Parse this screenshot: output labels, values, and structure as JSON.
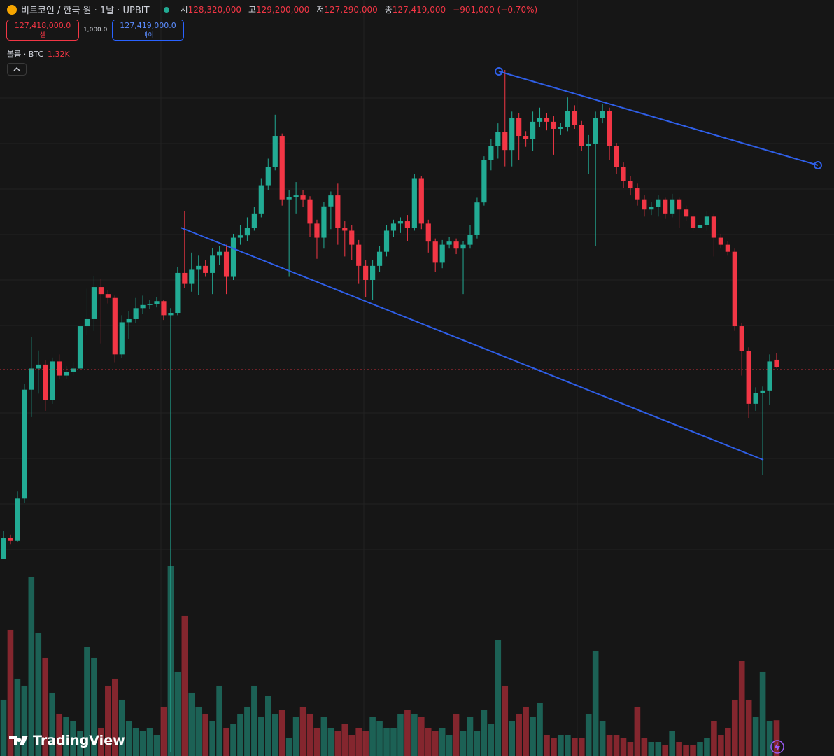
{
  "header": {
    "symbol": "비트코인 / 한국 원 · 1날 · UPBIT",
    "ohlc": [
      {
        "label": "시",
        "value": "128,320,000"
      },
      {
        "label": "고",
        "value": "129,200,000"
      },
      {
        "label": "저",
        "value": "127,290,000"
      },
      {
        "label": "종",
        "value": "127,419,000"
      }
    ],
    "change": "−901,000 (−0.70%)"
  },
  "trade": {
    "sell_price": "127,418,000.0",
    "sell": "셀",
    "spread": "1,000.0",
    "buy_price": "127,419,000.0",
    "buy": "바이"
  },
  "volume_legend": {
    "title": "볼륨 · BTC",
    "value": "1.32K"
  },
  "branding": "TradingView",
  "chart_data": {
    "type": "candlestick",
    "up_color": "#22ab94",
    "down_color": "#f23645",
    "open": [
      102900000.0,
      105600000.0,
      105200000.0,
      110600000.0,
      124500000.0,
      127200000.0,
      127700000.0,
      123200000.0,
      128100000.0,
      126300000.0,
      126800000.0,
      127200000.0,
      132600000.0,
      133500000.0,
      137600000.0,
      136700000.0,
      136200000.0,
      129000000.0,
      133100000.0,
      133500000.0,
      134900000.0,
      135300000.0,
      135400000.0,
      135800000.0,
      134000000.0,
      134300000.0,
      139400000.0,
      138000000.0,
      139800000.0,
      140300000.0,
      139400000.0,
      141600000.0,
      142100000.0,
      138900000.0,
      143900000.0,
      144200000.0,
      145200000.0,
      147000000.0,
      150600000.0,
      152900000.0,
      156900000.0,
      148800000.0,
      149100000.0,
      149300000.0,
      148800000.0,
      145700000.0,
      143900000.0,
      147900000.0,
      149300000.0,
      145200000.0,
      144800000.0,
      143000000.0,
      140300000.0,
      138500000.0,
      140300000.0,
      142100000.0,
      144800000.0,
      145700000.0,
      146000000.0,
      145200000.0,
      151500000.0,
      145700000.0,
      143400000.0,
      140700000.0,
      143000000.0,
      143400000.0,
      142500000.0,
      143000000.0,
      144300000.0,
      148400000.0,
      153800000.0,
      155600000.0,
      157400000.0,
      155100000.0,
      159200000.0,
      156900000.0,
      156500000.0,
      158700000.0,
      159200000.0,
      158700000.0,
      157800000.0,
      158000000.0,
      160100000.0,
      158300000.0,
      155600000.0,
      155900000.0,
      159200000.0,
      160100000.0,
      155600000.0,
      152900000.0,
      151100000.0,
      150200000.0,
      148800000.0,
      147500000.0,
      147800000.0,
      148800000.0,
      147000000.0,
      148800000.0,
      147500000.0,
      146600000.0,
      145200000.0,
      145500000.0,
      146600000.0,
      143900000.0,
      143000000.0,
      142100000.0,
      132600000.0,
      129400000.0,
      122700000.0,
      124100000.0,
      124400000.0,
      128320000.0
    ],
    "high": [
      106500000.0,
      106000000.0,
      111500000.0,
      125200000.0,
      131200000.0,
      129500000.0,
      128300000.0,
      128600000.0,
      129000000.0,
      127500000.0,
      128000000.0,
      133000000.0,
      137400000.0,
      139000000.0,
      138600000.0,
      137200000.0,
      136500000.0,
      134000000.0,
      134500000.0,
      136200000.0,
      136500000.0,
      136000000.0,
      136300000.0,
      136000000.0,
      134900000.0,
      140200000.0,
      147300000.0,
      142000000.0,
      141600000.0,
      141000000.0,
      142600000.0,
      142800000.0,
      143000000.0,
      144400000.0,
      145500000.0,
      146500000.0,
      147800000.0,
      151500000.0,
      154000000.0,
      159600000.0,
      157200000.0,
      150000000.0,
      151000000.0,
      150000000.0,
      149200000.0,
      146200000.0,
      148500000.0,
      149800000.0,
      150800000.0,
      146000000.0,
      145500000.0,
      143600000.0,
      141000000.0,
      141000000.0,
      142800000.0,
      145500000.0,
      146200000.0,
      146500000.0,
      146800000.0,
      152000000.0,
      151800000.0,
      146200000.0,
      143800000.0,
      143600000.0,
      144000000.0,
      143800000.0,
      143500000.0,
      145500000.0,
      149000000.0,
      154300000.0,
      156500000.0,
      158500000.0,
      165300000.0,
      160000000.0,
      159800000.0,
      157500000.0,
      160000000.0,
      160500000.0,
      159800000.0,
      159400000.0,
      158600000.0,
      161800000.0,
      160800000.0,
      158800000.0,
      157000000.0,
      160000000.0,
      161000000.0,
      160500000.0,
      156000000.0,
      153500000.0,
      151800000.0,
      150800000.0,
      149300000.0,
      148500000.0,
      149300000.0,
      149000000.0,
      149500000.0,
      149000000.0,
      148000000.0,
      147000000.0,
      146500000.0,
      147300000.0,
      147000000.0,
      144400000.0,
      143500000.0,
      142500000.0,
      133000000.0,
      129900000.0,
      124800000.0,
      124900000.0,
      129000000.0,
      129200000.0
    ],
    "low": [
      102900000.0,
      104800000.0,
      105000000.0,
      110000000.0,
      121000000.0,
      124000000.0,
      121800000.0,
      122700000.0,
      125800000.0,
      125900000.0,
      126300000.0,
      126900000.0,
      131500000.0,
      132000000.0,
      130400000.0,
      135500000.0,
      128000000.0,
      128500000.0,
      131000000.0,
      133000000.0,
      134200000.0,
      134800000.0,
      135000000.0,
      133400000.0,
      78200000.0,
      134000000.0,
      137500000.0,
      137000000.0,
      136600000.0,
      138900000.0,
      136700000.0,
      140400000.0,
      136700000.0,
      138500000.0,
      143000000.0,
      143500000.0,
      144800000.0,
      146500000.0,
      150000000.0,
      152500000.0,
      148000000.0,
      138900000.0,
      147000000.0,
      147800000.0,
      144000000.0,
      141200000.0,
      142500000.0,
      145000000.0,
      143000000.0,
      141500000.0,
      141000000.0,
      138000000.0,
      136300000.0,
      136000000.0,
      139500000.0,
      141500000.0,
      144000000.0,
      144500000.0,
      143500000.0,
      144800000.0,
      145000000.0,
      142000000.0,
      139500000.0,
      140000000.0,
      142500000.0,
      141800000.0,
      136700000.0,
      142500000.0,
      143800000.0,
      148000000.0,
      152500000.0,
      154000000.0,
      153000000.0,
      153000000.0,
      153800000.0,
      155500000.0,
      155000000.0,
      158000000.0,
      157600000.0,
      154500000.0,
      157000000.0,
      157500000.0,
      157800000.0,
      155000000.0,
      152000000.0,
      142800000.0,
      158500000.0,
      153800000.0,
      152000000.0,
      150200000.0,
      149300000.0,
      148000000.0,
      146600000.0,
      146800000.0,
      146600000.0,
      146300000.0,
      146500000.0,
      145200000.0,
      146000000.0,
      144800000.0,
      143000000.0,
      144800000.0,
      141500000.0,
      142500000.0,
      141600000.0,
      132000000.0,
      126300000.0,
      120900000.0,
      121800000.0,
      113600000.0,
      122600000.0,
      127290000.0
    ],
    "close": [
      105600000.0,
      105200000.0,
      110600000.0,
      124500000.0,
      127200000.0,
      127700000.0,
      123200000.0,
      128100000.0,
      126300000.0,
      126800000.0,
      127200000.0,
      132600000.0,
      133500000.0,
      137600000.0,
      136700000.0,
      136200000.0,
      129000000.0,
      133100000.0,
      133500000.0,
      134900000.0,
      135300000.0,
      135400000.0,
      135800000.0,
      134000000.0,
      134300000.0,
      139400000.0,
      138000000.0,
      139800000.0,
      140300000.0,
      139400000.0,
      141600000.0,
      142100000.0,
      138900000.0,
      143900000.0,
      144200000.0,
      145200000.0,
      147000000.0,
      150600000.0,
      152900000.0,
      156900000.0,
      148800000.0,
      149100000.0,
      149300000.0,
      148800000.0,
      145700000.0,
      143900000.0,
      147900000.0,
      149300000.0,
      145200000.0,
      144800000.0,
      143000000.0,
      140300000.0,
      138500000.0,
      140300000.0,
      142100000.0,
      144800000.0,
      145700000.0,
      146000000.0,
      145200000.0,
      151500000.0,
      145700000.0,
      143400000.0,
      140700000.0,
      143000000.0,
      143400000.0,
      142500000.0,
      143000000.0,
      144300000.0,
      148400000.0,
      153800000.0,
      155600000.0,
      157400000.0,
      155100000.0,
      159200000.0,
      156900000.0,
      156500000.0,
      158700000.0,
      159200000.0,
      158700000.0,
      157800000.0,
      158000000.0,
      160100000.0,
      158300000.0,
      155600000.0,
      155900000.0,
      159200000.0,
      160100000.0,
      155600000.0,
      152900000.0,
      151100000.0,
      150200000.0,
      148800000.0,
      147500000.0,
      147800000.0,
      148800000.0,
      147000000.0,
      148800000.0,
      147500000.0,
      146600000.0,
      145200000.0,
      145500000.0,
      146600000.0,
      143900000.0,
      143000000.0,
      142100000.0,
      132600000.0,
      129400000.0,
      122700000.0,
      124100000.0,
      124400000.0,
      128100000.0,
      127419000.0
    ],
    "volume": [
      2080,
      4680,
      2860,
      2600,
      6630,
      4550,
      3640,
      2340,
      1560,
      1430,
      1300,
      910,
      4030,
      3640,
      1040,
      2600,
      2860,
      2080,
      1300,
      1040,
      910,
      1040,
      780,
      1820,
      7070,
      3120,
      5200,
      2340,
      1820,
      1560,
      1300,
      2600,
      1040,
      1170,
      1560,
      1820,
      2600,
      1430,
      2210,
      1560,
      1690,
      650,
      1430,
      1820,
      1560,
      1040,
      1430,
      1040,
      910,
      1170,
      780,
      1040,
      910,
      1430,
      1300,
      1040,
      1040,
      1560,
      1690,
      1560,
      1430,
      1040,
      910,
      1040,
      780,
      1560,
      910,
      1430,
      910,
      1690,
      1170,
      4290,
      2600,
      1300,
      1560,
      1820,
      1430,
      1950,
      780,
      650,
      780,
      780,
      650,
      650,
      1560,
      3900,
      1300,
      780,
      780,
      650,
      520,
      1820,
      650,
      520,
      520,
      390,
      910,
      520,
      390,
      390,
      520,
      650,
      1300,
      780,
      1040,
      2080,
      3510,
      2080,
      1430,
      3120,
      1300,
      1320
    ]
  }
}
